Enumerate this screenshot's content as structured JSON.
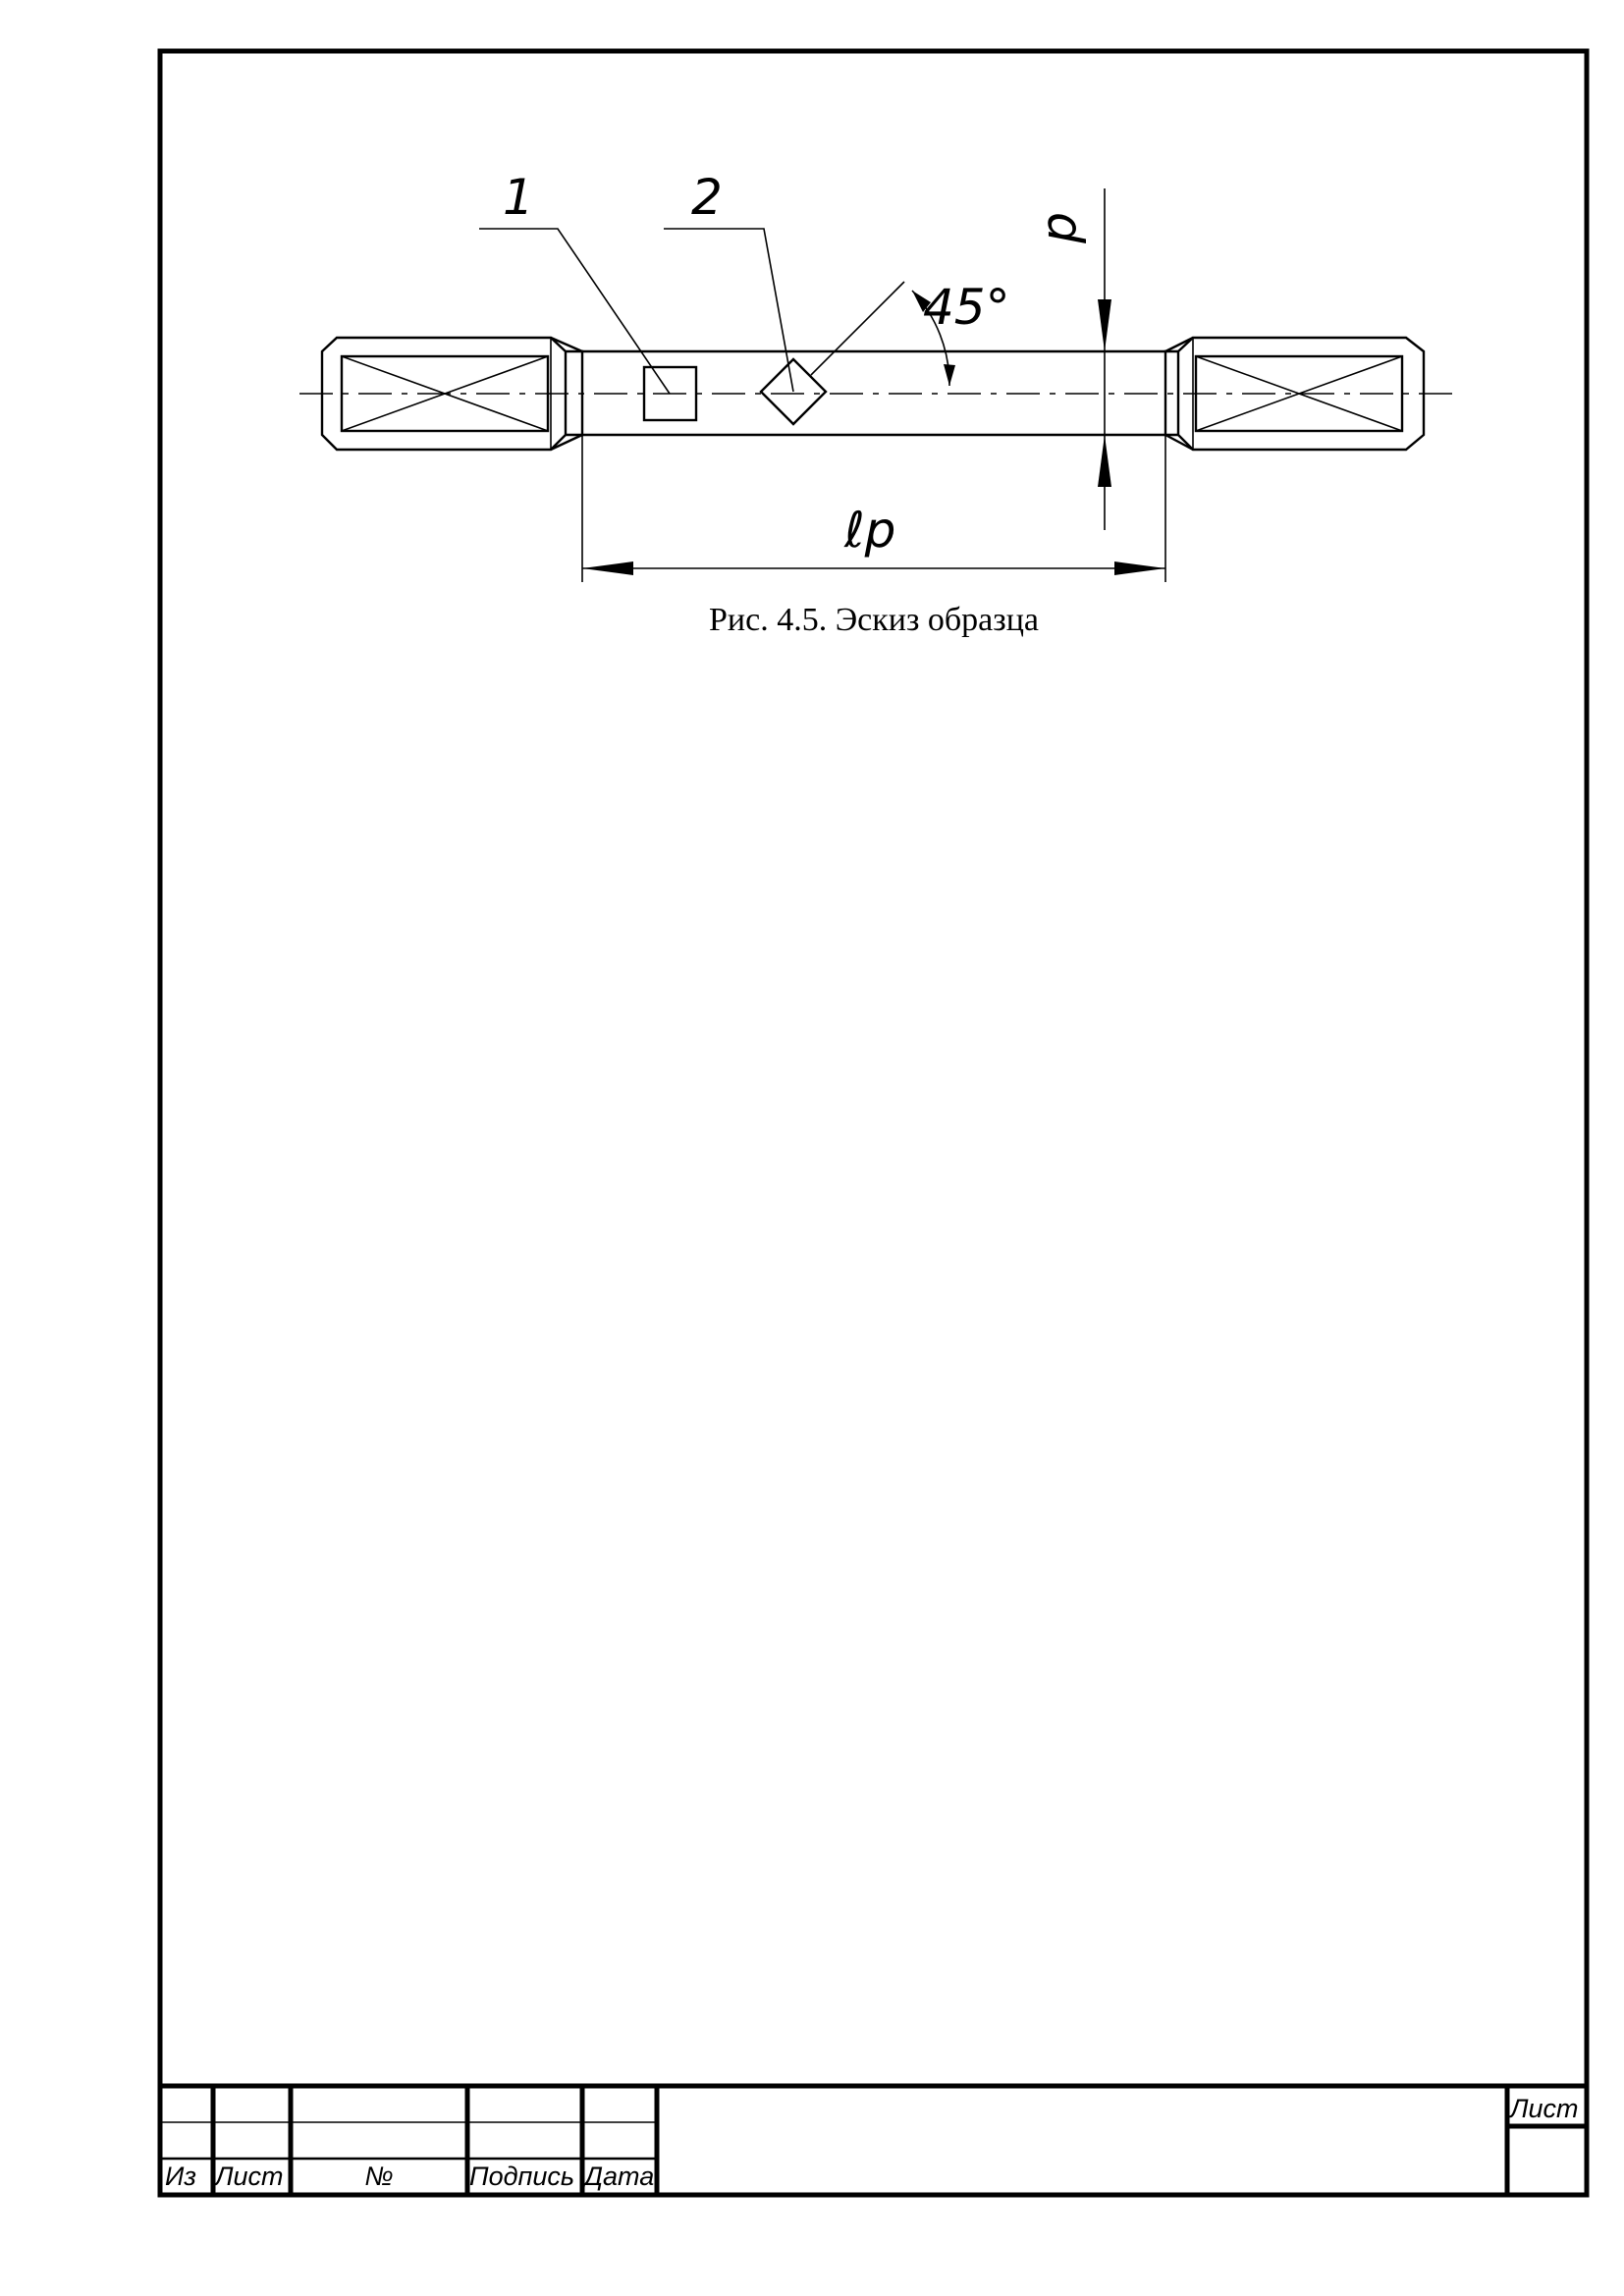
{
  "figure": {
    "caption": "Рис. 4.5. Эскиз образца",
    "callout_1": "1",
    "callout_2": "2",
    "angle_label": "45°",
    "dim_d": "d",
    "dim_length": "ℓp"
  },
  "title_block": {
    "headers": {
      "change": "Из",
      "sheet": "Лист",
      "doc_no": "№",
      "signature": "Подпись",
      "date": "Дата"
    },
    "sheet_label": "Лист",
    "sheet_number": ""
  }
}
